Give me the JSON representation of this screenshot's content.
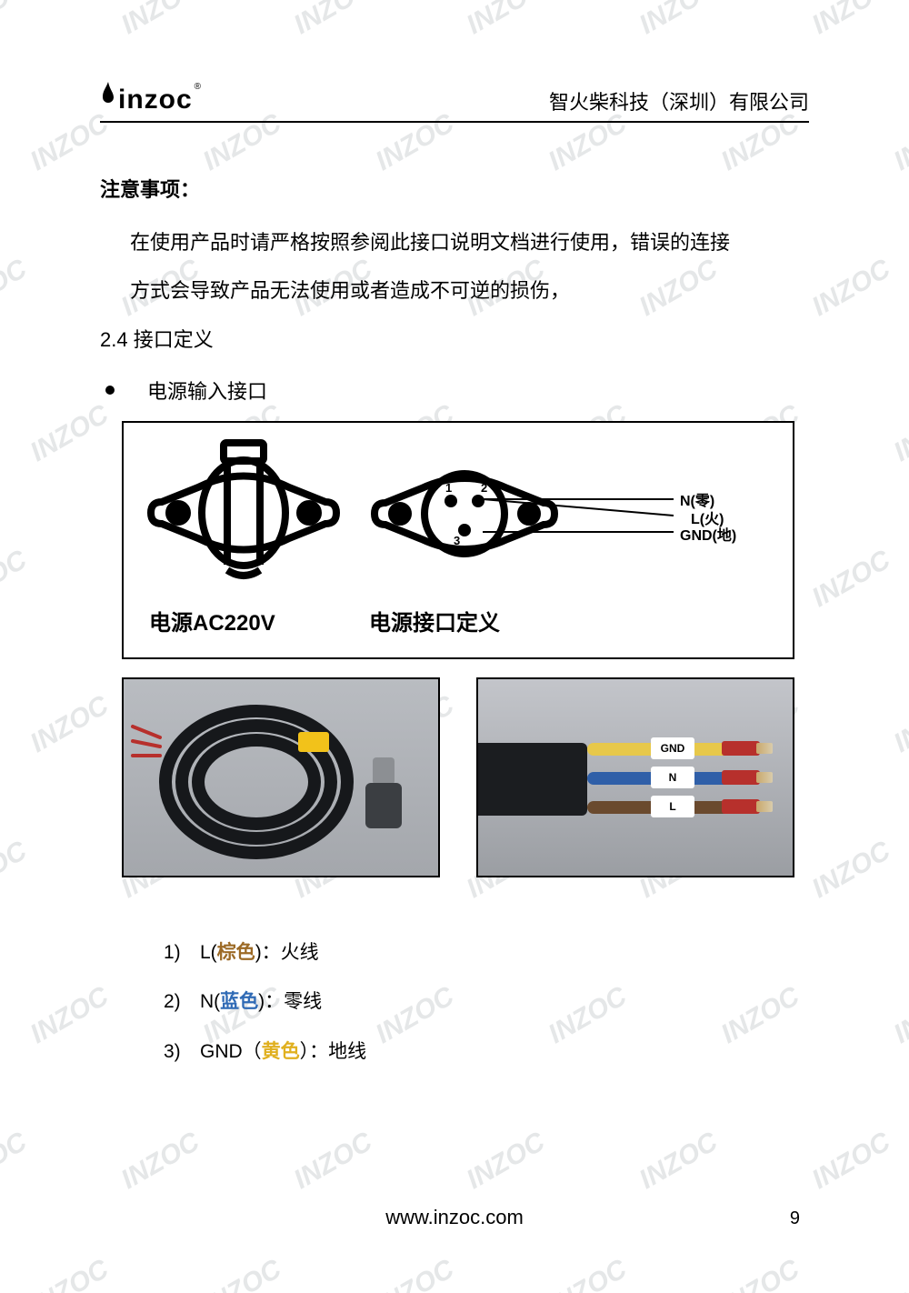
{
  "header": {
    "logo_text": "inzoc",
    "company": "智火柴科技（深圳）有限公司"
  },
  "notice": {
    "title": "注意事项：",
    "para1": "在使用产品时请严格按照参阅此接口说明文档进行使用，错误的连接",
    "para2": "方式会导致产品无法使用或者造成不可逆的损伤，"
  },
  "section": {
    "heading": "2.4 接口定义",
    "bullet": "电源输入接口"
  },
  "diagram": {
    "left_caption": "电源AC220V",
    "right_caption": "电源接口定义",
    "pin_labels": {
      "n": "N(零)",
      "l": "L(火)",
      "g": "GND(地)"
    },
    "pin_numbers": {
      "p1": "1",
      "p2": "2",
      "p3": "3"
    }
  },
  "photos": {
    "wire_labels": {
      "gnd": "GND",
      "n": "N",
      "l": "L"
    }
  },
  "list": {
    "items": [
      {
        "num": "1)",
        "prefix": "L(",
        "color_word": "棕色",
        "suffix": ")：火线",
        "color": "brown"
      },
      {
        "num": "2)",
        "prefix": "N(",
        "color_word": "蓝色",
        "suffix": ")：零线",
        "color": "blue"
      },
      {
        "num": "3)",
        "prefix": "GND（",
        "color_word": "黄色",
        "suffix": "）：地线",
        "color": "yellow"
      }
    ]
  },
  "footer": {
    "url": "www.inzoc.com",
    "page": "9"
  },
  "watermark": "INZOC",
  "colors": {
    "brown": "#9c6a26",
    "blue": "#2f6ab5",
    "yellow": "#e0b01f",
    "watermark": "#d0d4d6"
  }
}
